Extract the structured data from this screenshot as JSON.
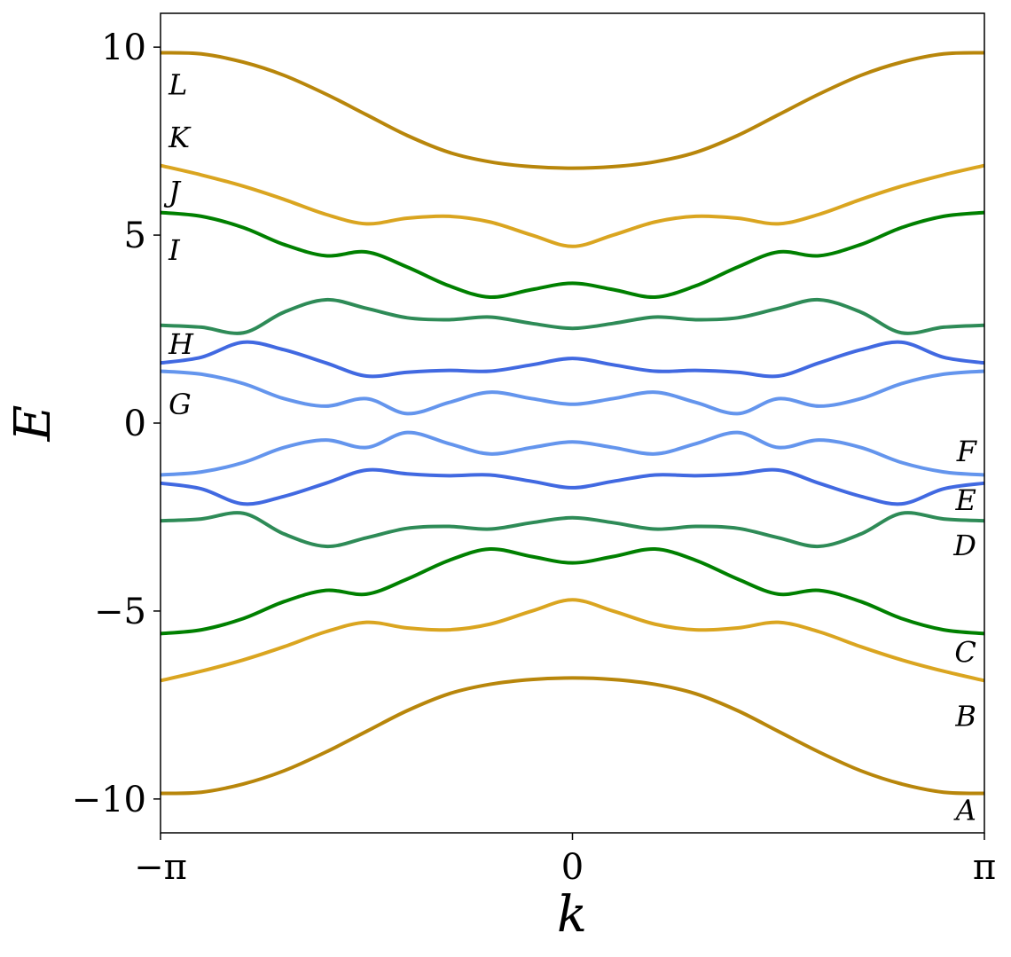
{
  "chart_data": {
    "type": "line",
    "title": "",
    "xlabel": "k",
    "ylabel": "E",
    "xlim": [
      -3.14159,
      3.14159
    ],
    "ylim": [
      -10.9,
      10.9
    ],
    "x_ticks": [
      {
        "value": -3.14159,
        "label": "−π"
      },
      {
        "value": 0,
        "label": "0"
      },
      {
        "value": 3.14159,
        "label": "π"
      }
    ],
    "y_ticks": [
      {
        "value": 10,
        "label": "10"
      },
      {
        "value": 5,
        "label": "5"
      },
      {
        "value": 0,
        "label": "0"
      },
      {
        "value": -5,
        "label": "−5"
      },
      {
        "value": -10,
        "label": "−10"
      }
    ],
    "grid": false,
    "colors": {
      "outer": "#B8860B",
      "gold": "#DAA520",
      "green": "#008000",
      "seagreen": "#2E8B57",
      "royal": "#4169E1",
      "cornflower": "#6495ED"
    },
    "x": [
      -3.14,
      -2.83,
      -2.51,
      -2.2,
      -1.88,
      -1.57,
      -1.26,
      -0.94,
      -0.63,
      -0.31,
      0,
      0.31,
      0.63,
      0.94,
      1.26,
      1.57,
      1.88,
      2.2,
      2.51,
      2.83,
      3.14
    ],
    "series": [
      {
        "color_key": "outer",
        "values": [
          9.85,
          9.82,
          9.6,
          9.25,
          8.75,
          8.2,
          7.65,
          7.2,
          6.95,
          6.82,
          6.78,
          6.82,
          6.95,
          7.2,
          7.65,
          8.2,
          8.75,
          9.25,
          9.6,
          9.82,
          9.85
        ]
      },
      {
        "color_key": "gold",
        "values": [
          6.85,
          6.6,
          6.3,
          5.95,
          5.55,
          5.3,
          5.45,
          5.5,
          5.35,
          5.0,
          4.7,
          5.0,
          5.35,
          5.5,
          5.45,
          5.3,
          5.55,
          5.95,
          6.3,
          6.6,
          6.85
        ]
      },
      {
        "color_key": "green",
        "values": [
          5.6,
          5.5,
          5.2,
          4.75,
          4.45,
          4.55,
          4.15,
          3.65,
          3.35,
          3.55,
          3.72,
          3.55,
          3.35,
          3.65,
          4.15,
          4.55,
          4.45,
          4.75,
          5.2,
          5.5,
          5.6
        ]
      },
      {
        "color_key": "seagreen",
        "values": [
          2.6,
          2.55,
          2.4,
          2.95,
          3.28,
          3.05,
          2.8,
          2.75,
          2.82,
          2.65,
          2.52,
          2.65,
          2.82,
          2.75,
          2.8,
          3.05,
          3.28,
          2.95,
          2.4,
          2.55,
          2.6
        ]
      },
      {
        "color_key": "royal",
        "values": [
          1.6,
          1.75,
          2.15,
          1.95,
          1.6,
          1.25,
          1.35,
          1.4,
          1.38,
          1.55,
          1.72,
          1.55,
          1.38,
          1.4,
          1.35,
          1.25,
          1.6,
          1.95,
          2.15,
          1.75,
          1.6
        ]
      },
      {
        "color_key": "cornflower",
        "values": [
          1.38,
          1.3,
          1.05,
          0.65,
          0.45,
          0.65,
          0.25,
          0.55,
          0.82,
          0.65,
          0.5,
          0.65,
          0.82,
          0.55,
          0.25,
          0.65,
          0.45,
          0.65,
          1.05,
          1.3,
          1.38
        ]
      },
      {
        "color_key": "cornflower",
        "values": [
          -1.38,
          -1.3,
          -1.05,
          -0.65,
          -0.45,
          -0.65,
          -0.25,
          -0.55,
          -0.82,
          -0.65,
          -0.5,
          -0.65,
          -0.82,
          -0.55,
          -0.25,
          -0.65,
          -0.45,
          -0.65,
          -1.05,
          -1.3,
          -1.38
        ]
      },
      {
        "color_key": "royal",
        "values": [
          -1.6,
          -1.75,
          -2.15,
          -1.95,
          -1.6,
          -1.25,
          -1.35,
          -1.4,
          -1.38,
          -1.55,
          -1.72,
          -1.55,
          -1.38,
          -1.4,
          -1.35,
          -1.25,
          -1.6,
          -1.95,
          -2.15,
          -1.75,
          -1.6
        ]
      },
      {
        "color_key": "seagreen",
        "values": [
          -2.6,
          -2.55,
          -2.4,
          -2.95,
          -3.28,
          -3.05,
          -2.8,
          -2.75,
          -2.82,
          -2.65,
          -2.52,
          -2.65,
          -2.82,
          -2.75,
          -2.8,
          -3.05,
          -3.28,
          -2.95,
          -2.4,
          -2.55,
          -2.6
        ]
      },
      {
        "color_key": "green",
        "values": [
          -5.6,
          -5.5,
          -5.2,
          -4.75,
          -4.45,
          -4.55,
          -4.15,
          -3.65,
          -3.35,
          -3.55,
          -3.72,
          -3.55,
          -3.35,
          -3.65,
          -4.15,
          -4.55,
          -4.45,
          -4.75,
          -5.2,
          -5.5,
          -5.6
        ]
      },
      {
        "color_key": "gold",
        "values": [
          -6.85,
          -6.6,
          -6.3,
          -5.95,
          -5.55,
          -5.3,
          -5.45,
          -5.5,
          -5.35,
          -5.0,
          -4.7,
          -5.0,
          -5.35,
          -5.5,
          -5.45,
          -5.3,
          -5.55,
          -5.95,
          -6.3,
          -6.6,
          -6.85
        ]
      },
      {
        "color_key": "outer",
        "values": [
          -9.85,
          -9.82,
          -9.6,
          -9.25,
          -8.75,
          -8.2,
          -7.65,
          -7.2,
          -6.95,
          -6.82,
          -6.78,
          -6.82,
          -6.95,
          -7.2,
          -7.65,
          -8.2,
          -8.75,
          -9.25,
          -9.6,
          -9.82,
          -9.85
        ]
      }
    ],
    "annotations": [
      {
        "text": "L",
        "x": -3.08,
        "y": 9.0,
        "anchor": "start"
      },
      {
        "text": "K",
        "x": -3.08,
        "y": 7.6,
        "anchor": "start"
      },
      {
        "text": "J",
        "x": -3.08,
        "y": 6.15,
        "anchor": "start"
      },
      {
        "text": "I",
        "x": -3.08,
        "y": 4.6,
        "anchor": "start"
      },
      {
        "text": "H",
        "x": -3.08,
        "y": 2.1,
        "anchor": "start"
      },
      {
        "text": "G",
        "x": -3.08,
        "y": 0.5,
        "anchor": "start"
      },
      {
        "text": "F",
        "x": 3.08,
        "y": -0.75,
        "anchor": "end"
      },
      {
        "text": "E",
        "x": 3.08,
        "y": -2.05,
        "anchor": "end"
      },
      {
        "text": "D",
        "x": 3.08,
        "y": -3.25,
        "anchor": "end"
      },
      {
        "text": "C",
        "x": 3.08,
        "y": -6.1,
        "anchor": "end"
      },
      {
        "text": "B",
        "x": 3.08,
        "y": -7.8,
        "anchor": "end"
      },
      {
        "text": "A",
        "x": 3.08,
        "y": -10.3,
        "anchor": "end"
      }
    ]
  }
}
